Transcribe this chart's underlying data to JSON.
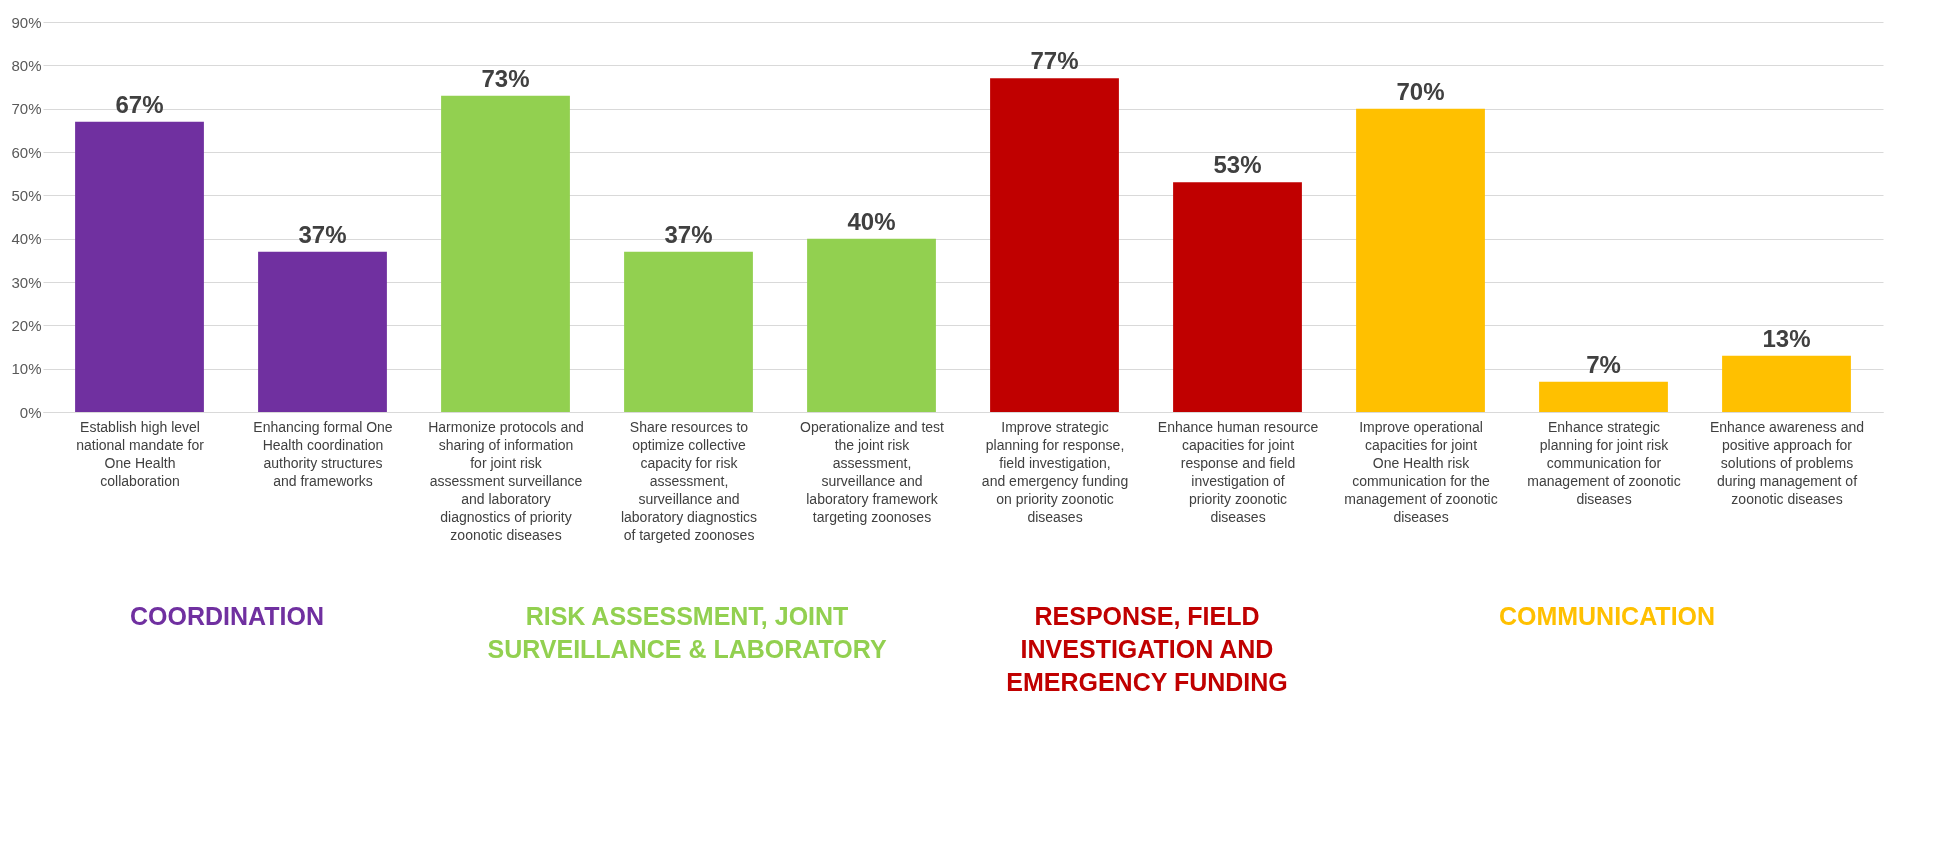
{
  "chart_data": {
    "type": "bar",
    "categories": [
      "Establish high level national mandate for One Health collaboration",
      "Enhancing formal One Health coordination authority structures and frameworks",
      "Harmonize protocols and sharing of information for joint risk assessment surveillance and laboratory diagnostics of priority zoonotic diseases",
      "Share resources to optimize collective capacity for risk assessment, surveillance and laboratory diagnostics of targeted zoonoses",
      "Operationalize and test the joint risk assessment, surveillance and laboratory framework targeting zoonoses",
      "Improve strategic planning for response, field investigation, and emergency funding on priority zoonotic diseases",
      "Enhance human resource capacities for joint response and field investigation of priority zoonotic diseases",
      "Improve operational capacities for joint One Health risk communication for the management of zoonotic diseases",
      "Enhance strategic planning for joint risk communication for management of zoonotic diseases",
      "Enhance awareness and positive approach for solutions of problems during management of zoonotic diseases"
    ],
    "values": [
      67,
      37,
      73,
      37,
      40,
      77,
      53,
      70,
      7,
      13
    ],
    "value_labels": [
      "67%",
      "37%",
      "73%",
      "37%",
      "40%",
      "77%",
      "53%",
      "70%",
      "7%",
      "13%"
    ],
    "colors": [
      "#7030a0",
      "#7030a0",
      "#92d050",
      "#92d050",
      "#92d050",
      "#c00000",
      "#c00000",
      "#ffc000",
      "#ffc000",
      "#ffc000"
    ],
    "ylim": [
      0,
      90
    ],
    "yticks": [
      {
        "value": 0,
        "label": "0%"
      },
      {
        "value": 10,
        "label": "10%"
      },
      {
        "value": 20,
        "label": "20%"
      },
      {
        "value": 30,
        "label": "30%"
      },
      {
        "value": 40,
        "label": "40%"
      },
      {
        "value": 50,
        "label": "50%"
      },
      {
        "value": 60,
        "label": "60%"
      },
      {
        "value": 70,
        "label": "70%"
      },
      {
        "value": 80,
        "label": "80%"
      },
      {
        "value": 90,
        "label": "90%"
      }
    ],
    "grid": "y",
    "annotations": [
      "COORDINATION",
      "RISK ASSESSMENT, JOINT\nSURVEILLANCE & LABORATORY",
      "RESPONSE, FIELD\nINVESTIGATION AND\nEMERGENCY FUNDING",
      "COMMUNICATION"
    ]
  }
}
